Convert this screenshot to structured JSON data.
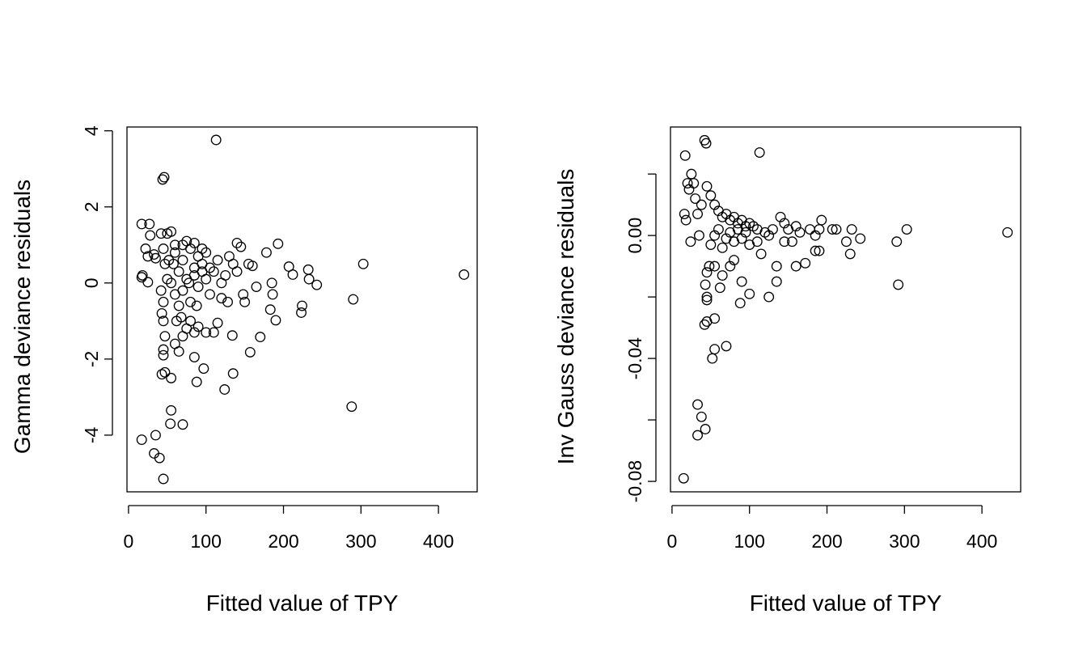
{
  "chart_data": [
    {
      "type": "scatter",
      "xlabel": "Fitted value of TPY",
      "ylabel": "Gamma deviance residuals",
      "color": "#000000",
      "xlim": [
        -2,
        450
      ],
      "ylim": [
        -5.49,
        4.1
      ],
      "xticks": [
        0,
        100,
        200,
        300,
        400
      ],
      "yticks": [
        -4,
        -2,
        0,
        2,
        4
      ],
      "series": [
        {
          "color": "#000000",
          "x": [
            113,
            44,
            46,
            17,
            27,
            17,
            18,
            25,
            28,
            22,
            25,
            33,
            35,
            42,
            50,
            55,
            45,
            47,
            50,
            42,
            45,
            43,
            45,
            47,
            45,
            45,
            43,
            47,
            55,
            55,
            54,
            70,
            17,
            35,
            33,
            40,
            45,
            60,
            65,
            70,
            75,
            80,
            85,
            88,
            97,
            85,
            90,
            100,
            110,
            115,
            124,
            135,
            134,
            157,
            170,
            183,
            190,
            186,
            193,
            207,
            212,
            223,
            224,
            232,
            233,
            243,
            288,
            290,
            303,
            433,
            140,
            145,
            155,
            160,
            165,
            178,
            185,
            150,
            148,
            128,
            120,
            60,
            65,
            70,
            75,
            80,
            85,
            90,
            95,
            100,
            105,
            110,
            115,
            120,
            125,
            130,
            135,
            140,
            55,
            60,
            65,
            70,
            75,
            80,
            85,
            90,
            95,
            100,
            105,
            60,
            70,
            85,
            95,
            52,
            58,
            62,
            68,
            78,
            88
          ],
          "values": [
            3.76,
            2.72,
            2.78,
            1.55,
            1.55,
            0.15,
            0.2,
            0.02,
            1.25,
            0.9,
            0.7,
            0.75,
            0.65,
            1.3,
            1.3,
            1.35,
            0.9,
            0.5,
            0.1,
            -0.2,
            -0.5,
            -0.8,
            -1.0,
            -1.4,
            -1.75,
            -1.9,
            -2.4,
            -2.35,
            -2.5,
            -3.35,
            -3.7,
            -3.72,
            -4.12,
            -4.0,
            -4.48,
            -4.6,
            -5.15,
            -1.6,
            -1.8,
            -1.4,
            -1.2,
            -1.0,
            -1.95,
            -2.6,
            -2.25,
            -1.3,
            -1.15,
            -1.3,
            -1.3,
            -1.05,
            -2.8,
            -2.38,
            -1.38,
            -1.82,
            -1.42,
            -0.7,
            -0.98,
            -0.3,
            1.03,
            0.43,
            0.22,
            -0.78,
            -0.6,
            0.35,
            0.1,
            -0.05,
            -3.25,
            -0.43,
            0.5,
            0.22,
            1.05,
            0.95,
            0.5,
            0.45,
            -0.1,
            0.8,
            0.0,
            -0.5,
            -0.3,
            -0.5,
            -0.4,
            0.8,
            0.3,
            0.6,
            1.1,
            0.9,
            0.2,
            0.7,
            0.5,
            0.8,
            0.4,
            0.3,
            0.6,
            0.0,
            0.2,
            0.7,
            0.5,
            0.3,
            0.0,
            -0.3,
            -0.6,
            -0.2,
            0.1,
            -0.5,
            0.4,
            -0.1,
            0.9,
            0.1,
            -0.3,
            1.0,
            1.0,
            1.05,
            0.3,
            0.6,
            0.5,
            -1.0,
            -0.9,
            0.0,
            -0.6
          ]
        }
      ]
    },
    {
      "type": "scatter",
      "xlabel": "Fitted value of TPY",
      "ylabel": "Inv Gauss deviance residuals",
      "color": "#000000",
      "xlim": [
        -2,
        450
      ],
      "ylim": [
        -0.0834,
        0.0353
      ],
      "xticks": [
        0,
        100,
        200,
        300,
        400
      ],
      "yticks": [
        -0.08,
        {
          "value": -0.06,
          "label": null
        },
        -0.04,
        {
          "value": -0.02,
          "label": null
        },
        {
          "value": 0,
          "label": "0.00"
        },
        {
          "value": 0.02,
          "label": null
        }
      ],
      "series": [
        {
          "color": "#000000",
          "x": [
            15,
            17,
            16,
            18,
            20,
            25,
            22,
            24,
            28,
            30,
            33,
            35,
            38,
            42,
            44,
            45,
            113,
            33,
            38,
            33,
            43,
            52,
            55,
            70,
            45,
            55,
            42,
            45,
            45,
            43,
            45,
            48,
            55,
            62,
            65,
            75,
            80,
            90,
            88,
            100,
            125,
            135,
            135,
            160,
            172,
            185,
            190,
            225,
            230,
            232,
            243,
            290,
            292,
            303,
            433,
            50,
            55,
            60,
            65,
            70,
            75,
            80,
            85,
            90,
            95,
            100,
            105,
            110,
            120,
            130,
            140,
            145,
            150,
            160,
            178,
            193,
            207,
            212,
            50,
            55,
            60,
            65,
            70,
            75,
            80,
            85,
            90,
            95,
            100,
            110,
            115,
            125,
            145,
            155,
            165,
            185,
            190
          ],
          "values": [
            -0.079,
            0.026,
            0.007,
            0.005,
            0.017,
            0.02,
            0.015,
            -0.002,
            0.017,
            0.012,
            0.007,
            0.0,
            0.01,
            0.031,
            0.03,
            0.016,
            0.027,
            -0.055,
            -0.059,
            -0.065,
            -0.063,
            -0.04,
            -0.037,
            -0.036,
            -0.028,
            -0.027,
            -0.029,
            -0.02,
            -0.021,
            -0.016,
            -0.012,
            -0.01,
            -0.01,
            -0.017,
            -0.013,
            -0.01,
            -0.008,
            -0.015,
            -0.022,
            -0.019,
            -0.02,
            -0.015,
            -0.01,
            -0.01,
            -0.009,
            -0.005,
            -0.005,
            -0.002,
            -0.006,
            0.002,
            -0.001,
            -0.002,
            -0.016,
            0.002,
            0.001,
            0.013,
            0.01,
            0.008,
            0.006,
            0.007,
            0.005,
            0.006,
            0.004,
            0.005,
            0.003,
            0.004,
            0.003,
            0.002,
            0.001,
            0.002,
            0.006,
            0.004,
            0.002,
            0.003,
            0.002,
            0.005,
            0.002,
            0.002,
            -0.003,
            0.0,
            0.002,
            -0.004,
            -0.001,
            0.001,
            -0.002,
            0.002,
            -0.001,
            0.001,
            -0.003,
            -0.002,
            -0.006,
            0.0,
            -0.002,
            -0.002,
            0.001,
            0.0,
            0.002
          ]
        }
      ]
    }
  ]
}
